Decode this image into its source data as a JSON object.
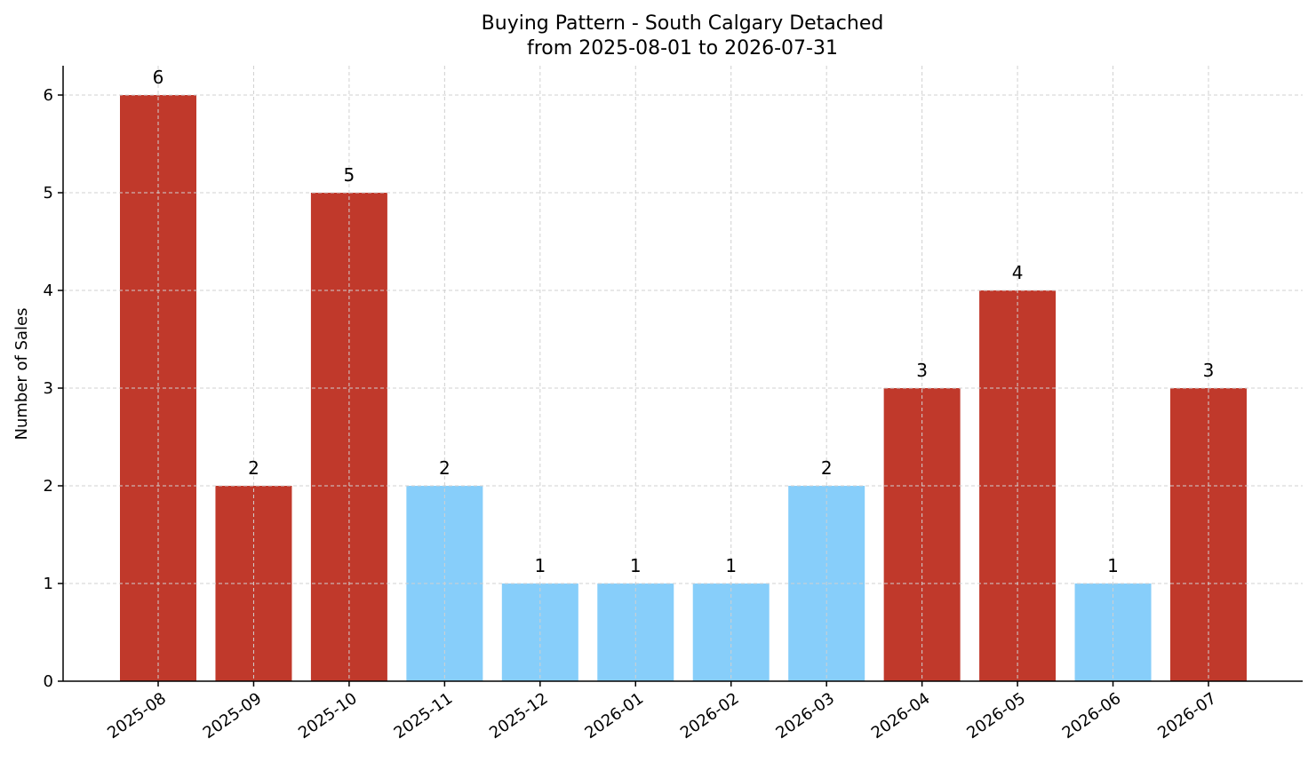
{
  "chart_data": {
    "type": "bar",
    "title": "Buying Pattern - South Calgary Detached",
    "subtitle": "from 2025-08-01 to 2026-07-31",
    "xlabel": "",
    "ylabel": "Number of Sales",
    "categories": [
      "2025-08",
      "2025-09",
      "2025-10",
      "2025-11",
      "2025-12",
      "2026-01",
      "2026-02",
      "2026-03",
      "2026-04",
      "2026-05",
      "2026-06",
      "2026-07"
    ],
    "values": [
      6,
      2,
      5,
      2,
      1,
      1,
      1,
      2,
      3,
      4,
      1,
      3
    ],
    "bar_colors": [
      "#c0392b",
      "#c0392b",
      "#c0392b",
      "#87cefa",
      "#87cefa",
      "#87cefa",
      "#87cefa",
      "#87cefa",
      "#c0392b",
      "#c0392b",
      "#87cefa",
      "#c0392b"
    ],
    "ylim": [
      0,
      6.3
    ],
    "yticks": [
      0,
      1,
      2,
      3,
      4,
      5,
      6
    ],
    "grid": true,
    "legend": "none"
  }
}
